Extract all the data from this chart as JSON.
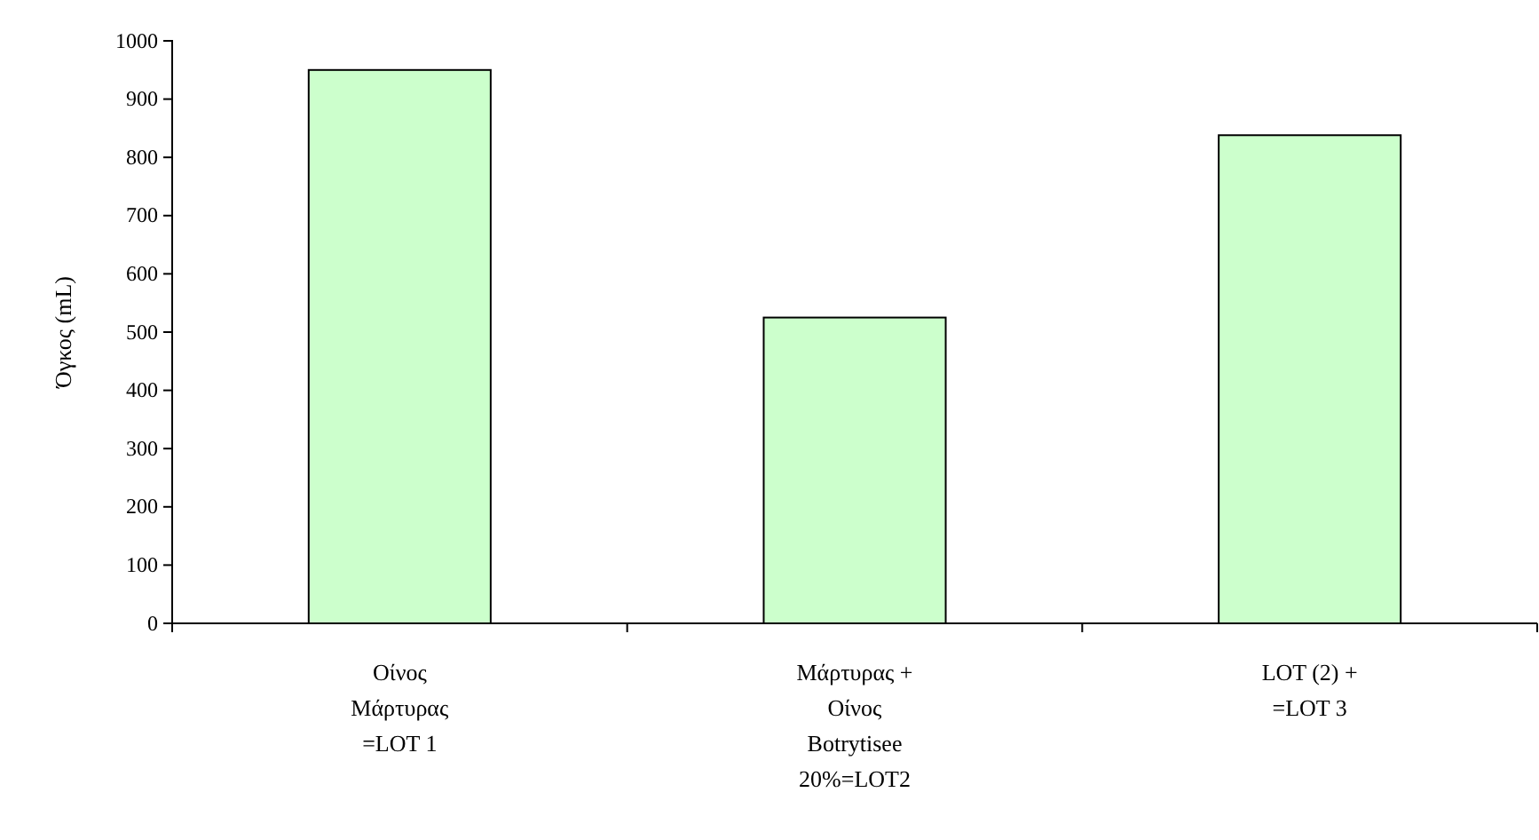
{
  "chart_data": {
    "type": "bar",
    "ylabel": "Όγκος (mL)",
    "categories": [
      "Οίνος Μάρτυρας =LOT 1",
      "Μάρτυρας + Οίνος Botrytisee 20%=LOT2",
      "LOT (2) + =LOT 3"
    ],
    "values": [
      950,
      525,
      838
    ],
    "color": "#ccffcc",
    "ylim": [
      0,
      1000
    ],
    "yticks": [
      0,
      100,
      200,
      300,
      400,
      500,
      600,
      700,
      800,
      900,
      1000
    ],
    "grid": false
  }
}
